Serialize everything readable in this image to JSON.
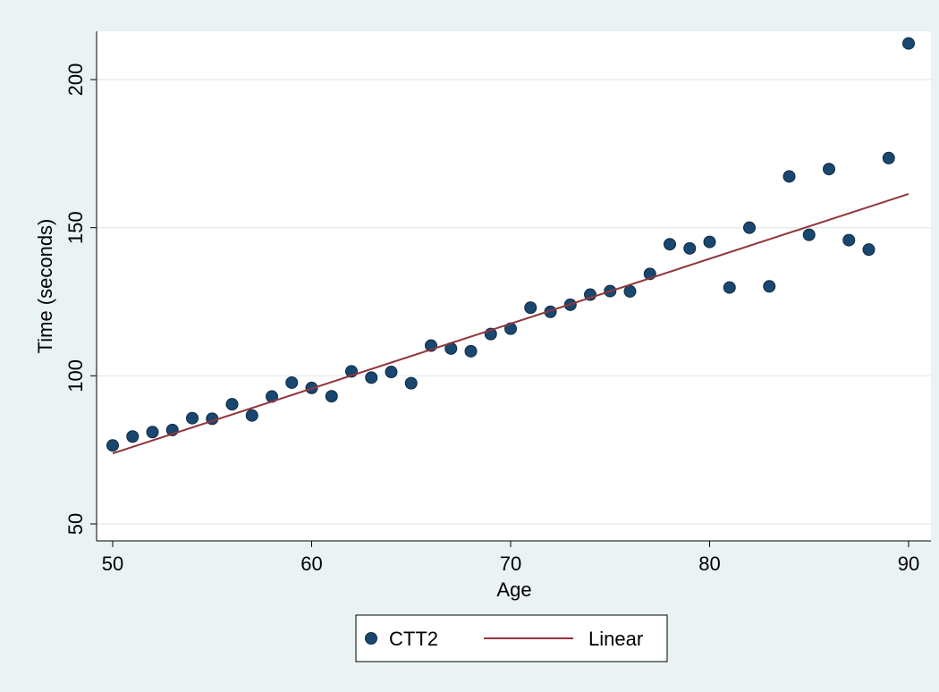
{
  "chart_data": {
    "type": "scatter",
    "xlabel": "Age",
    "ylabel": "Time (seconds)",
    "xlim": [
      50,
      90
    ],
    "ylim": [
      50,
      220
    ],
    "x_ticks": [
      50,
      60,
      70,
      80,
      90
    ],
    "y_ticks": [
      50,
      100,
      150,
      200
    ],
    "grid": "horizontal",
    "legend_position": "bottom",
    "series": [
      {
        "name": "CTT2",
        "kind": "scatter",
        "color": "#1a476f",
        "x": [
          50,
          51,
          52,
          53,
          54,
          55,
          56,
          57,
          58,
          59,
          60,
          61,
          62,
          63,
          64,
          65,
          66,
          67,
          68,
          69,
          70,
          71,
          72,
          73,
          74,
          75,
          76,
          77,
          78,
          79,
          80,
          81,
          82,
          83,
          84,
          85,
          86,
          87,
          88,
          89,
          90
        ],
        "y": [
          76.5,
          79.5,
          81,
          81.7,
          85.7,
          85.5,
          90.4,
          86.6,
          93,
          97.7,
          95.9,
          93.1,
          101.5,
          99.4,
          101.3,
          97.5,
          110.2,
          109.2,
          108.3,
          114.1,
          115.9,
          123,
          121.6,
          124,
          127.4,
          128.6,
          128.5,
          134.4,
          144.4,
          143,
          145.2,
          129.8,
          150,
          130.2,
          167.3,
          147.6,
          169.8,
          145.8,
          142.6,
          173.5,
          212.2
        ]
      },
      {
        "name": "Linear",
        "kind": "line",
        "color": "#90353b",
        "x": [
          50,
          90
        ],
        "y": [
          73.8,
          161.4
        ]
      }
    ]
  }
}
